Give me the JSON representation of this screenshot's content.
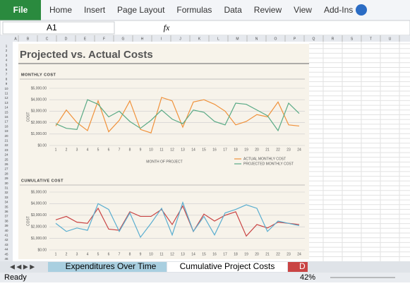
{
  "ribbon": {
    "file": "File",
    "tabs": [
      "Home",
      "Insert",
      "Page Layout",
      "Formulas",
      "Data",
      "Review",
      "View",
      "Add-Ins"
    ]
  },
  "formula_bar": {
    "name_box": "A1",
    "fx": "fx"
  },
  "columns": [
    "A",
    "B",
    "C",
    "D",
    "E",
    "F",
    "G",
    "H",
    "I",
    "J",
    "K",
    "L",
    "M",
    "N",
    "O",
    "P",
    "Q",
    "R",
    "S",
    "T",
    "U"
  ],
  "rows": [
    1,
    2,
    3,
    4,
    5,
    6,
    7,
    8,
    9,
    10,
    11,
    12,
    13,
    14,
    15,
    16,
    17,
    18,
    19,
    20,
    21,
    22,
    23,
    24,
    25,
    26,
    27,
    28,
    29,
    30,
    31,
    32,
    33,
    34,
    35,
    36,
    37,
    38,
    39,
    40,
    41,
    42,
    43,
    44,
    45,
    46
  ],
  "sheet_title": "Projected vs. Actual Costs",
  "charts": [
    {
      "type": "line",
      "title": "MONTHLY COST",
      "x_label": "MONTH OF PROJECT",
      "y_label": "COST",
      "categories": [
        1,
        2,
        3,
        4,
        5,
        6,
        7,
        8,
        9,
        10,
        11,
        12,
        13,
        14,
        15,
        16,
        17,
        18,
        19,
        20,
        21,
        22,
        23,
        24
      ],
      "ylim": [
        0,
        5000
      ],
      "yticks": [
        {
          "value": 0,
          "label": "$0.00"
        },
        {
          "value": 1000,
          "label": "$1,000.00"
        },
        {
          "value": 2000,
          "label": "$2,000.00"
        },
        {
          "value": 3000,
          "label": "$3,000.00"
        },
        {
          "value": 4000,
          "label": "$4,000.00"
        },
        {
          "value": 5000,
          "label": "$5,000.00"
        }
      ],
      "grid": true,
      "legend": "bottom-right",
      "series": [
        {
          "name": "ACTUAL MONTHLY COST",
          "color": "#f0913a",
          "values": [
            1700,
            3100,
            2000,
            1300,
            3900,
            1200,
            2200,
            3900,
            1400,
            1100,
            4200,
            3900,
            1600,
            3800,
            4000,
            3600,
            3000,
            1800,
            2100,
            2700,
            2500,
            3800,
            1800,
            1700
          ]
        },
        {
          "name": "PROJECTED MONTHLY COST",
          "color": "#5aaa86",
          "values": [
            1900,
            1500,
            1400,
            4000,
            3600,
            2500,
            3000,
            2100,
            1500,
            2200,
            3100,
            2300,
            1900,
            3100,
            2900,
            2100,
            1800,
            3700,
            3600,
            3100,
            2600,
            1300,
            3700,
            2800
          ]
        }
      ]
    },
    {
      "type": "line",
      "title": "CUMULATIVE COST",
      "y_label": "COST",
      "categories": [
        1,
        2,
        3,
        4,
        5,
        6,
        7,
        8,
        9,
        10,
        11,
        12,
        13,
        14,
        15,
        16,
        17,
        18,
        19,
        20,
        21,
        22,
        23,
        24
      ],
      "ylim": [
        0,
        5000
      ],
      "yticks": [
        {
          "value": 0,
          "label": "$0.00"
        },
        {
          "value": 1000,
          "label": "$1,000.00"
        },
        {
          "value": 2000,
          "label": "$2,000.00"
        },
        {
          "value": 3000,
          "label": "$3,000.00"
        },
        {
          "value": 4000,
          "label": "$4,000.00"
        },
        {
          "value": 5000,
          "label": "$5,000.00"
        }
      ],
      "grid": true,
      "series": [
        {
          "color": "#c94444",
          "values": [
            2600,
            2900,
            2400,
            2300,
            3600,
            1800,
            1700,
            3300,
            2900,
            2900,
            3500,
            2200,
            3800,
            1600,
            3100,
            2500,
            3000,
            3300,
            1200,
            2200,
            1900,
            2400,
            2300,
            2200
          ]
        },
        {
          "color": "#5aaed0",
          "values": [
            2300,
            1600,
            1900,
            1700,
            4000,
            3500,
            1600,
            3200,
            1100,
            2300,
            3600,
            1300,
            4100,
            1600,
            2900,
            1300,
            3200,
            3500,
            3900,
            3600,
            1600,
            2500,
            2300,
            2100
          ]
        }
      ]
    }
  ],
  "sheet_tabs": [
    "Expenditures Over Time",
    "Cumulative Project Costs",
    "D"
  ],
  "status": {
    "ready": "Ready",
    "zoom": "42%"
  }
}
